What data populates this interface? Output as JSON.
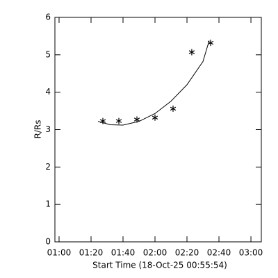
{
  "chart_data": {
    "type": "scatter",
    "xlabel": "Start Time (18-Oct-25 00:55:54)",
    "ylabel": "R/Rs",
    "xlim": [
      57.4,
      186.5
    ],
    "ylim": [
      0,
      6
    ],
    "xticks": [
      {
        "value": 60,
        "label": "01:00"
      },
      {
        "value": 80,
        "label": "01:20"
      },
      {
        "value": 100,
        "label": "01:40"
      },
      {
        "value": 120,
        "label": "02:00"
      },
      {
        "value": 140,
        "label": "02:20"
      },
      {
        "value": 160,
        "label": "02:40"
      },
      {
        "value": 180,
        "label": "03:00"
      }
    ],
    "yticks": [
      0,
      1,
      2,
      3,
      4,
      5,
      6
    ],
    "color": "#000000",
    "series": [
      {
        "type": "scatter",
        "x": [
          87.4,
          97.4,
          108.7,
          120,
          131.3,
          143,
          154.8
        ],
        "values": [
          3.23,
          3.23,
          3.27,
          3.32,
          3.56,
          5.07,
          5.32
        ]
      },
      {
        "type": "line",
        "x": [
          84.4,
          92,
          100,
          110,
          120,
          130,
          140,
          150,
          153.9
        ],
        "values": [
          3.22,
          3.13,
          3.12,
          3.22,
          3.43,
          3.76,
          4.2,
          4.82,
          5.38
        ]
      }
    ]
  }
}
